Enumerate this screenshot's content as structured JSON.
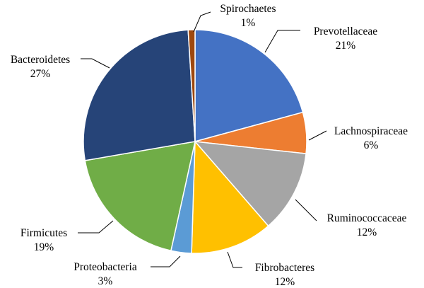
{
  "chart_data": {
    "type": "pie",
    "title": "",
    "start_angle_deg": 0,
    "direction": "clockwise",
    "slices": [
      {
        "label": "Prevotellaceae",
        "value": 21,
        "value_label": "21%",
        "color": "#4472C4"
      },
      {
        "label": "Lachnospiraceae",
        "value": 6,
        "value_label": "6%",
        "color": "#ED7D31"
      },
      {
        "label": "Ruminococcaceae",
        "value": 12,
        "value_label": "12%",
        "color": "#A5A5A5"
      },
      {
        "label": "Fibrobacteres",
        "value": 12,
        "value_label": "12%",
        "color": "#FFC000"
      },
      {
        "label": "Proteobacteria",
        "value": 3,
        "value_label": "3%",
        "color": "#5B9BD5"
      },
      {
        "label": "Firmicutes",
        "value": 19,
        "value_label": "19%",
        "color": "#70AD47"
      },
      {
        "label": "Bacteroidetes",
        "value": 27,
        "value_label": "27%",
        "color": "#264478"
      },
      {
        "label": "Spirochaetes",
        "value": 1,
        "value_label": "1%",
        "color": "#9E480E"
      }
    ]
  }
}
